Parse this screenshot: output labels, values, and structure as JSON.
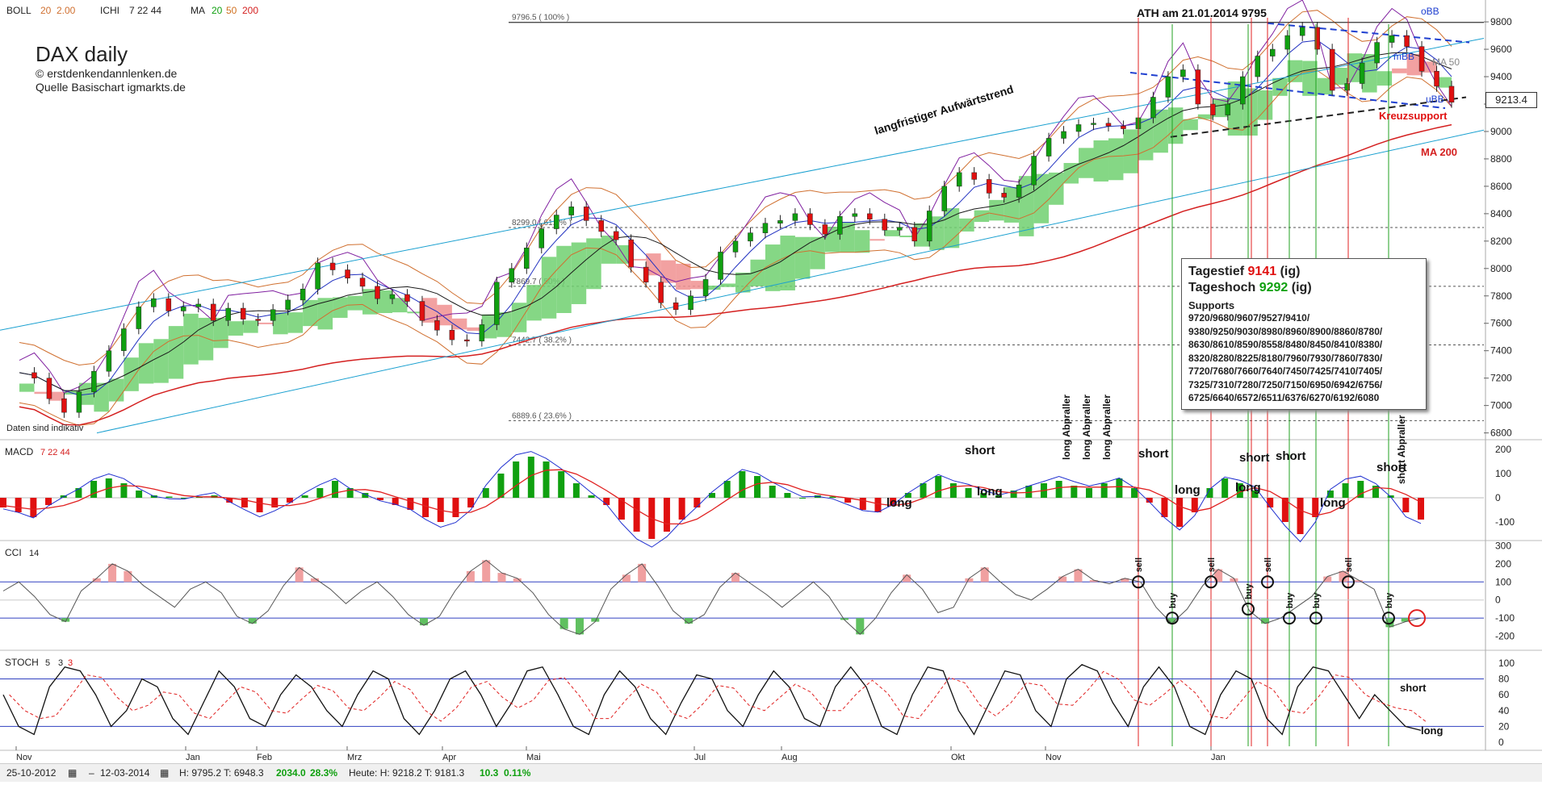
{
  "header": {
    "boll": "BOLL",
    "boll_p1": "20",
    "boll_p2": "2.00",
    "ichi": "ICHI",
    "ichi_p": "7  22  44",
    "ma": "MA",
    "ma_p1": "20",
    "ma_p2": "50",
    "ma_p3": "200"
  },
  "title": "DAX daily",
  "subtitle1": "© erstdenkendannlenken.de",
  "subtitle2": "Quelle Basischart igmarkts.de",
  "disclaimer": "Daten sind indikativ",
  "ath_label": "ATH am 21.01.2014 9795",
  "fib_labels": [
    "9796.5 ( 100% )",
    "8299.0 ( 61.8% )",
    "7869.7 ( 50% )",
    "7442.7 ( 38.2% )",
    "6889.6 ( 23.6% )"
  ],
  "annotations": {
    "trend": "langfristiger Aufwärtstrend",
    "kreuzsupport": "Kreuzsupport",
    "ma200": "MA 200",
    "obb": "oBB",
    "mbb": "mBB",
    "ma50": "MA 50",
    "ubb": "uBB"
  },
  "current_price": "9213.4",
  "info_box": {
    "tagestief_label": "Tagestief",
    "tagestief_value": "9141",
    "tagestief_src": "(ig)",
    "tageshoch_label": "Tageshoch",
    "tageshoch_value": "9292",
    "tageshoch_src": "(ig)",
    "supports_title": "Supports",
    "supports_lines": [
      "9720/9680/9607/9527/9410/",
      "9380/9250/9030/8980/8960/8900/8860/8780/",
      "8630/8610/8590/8558/8480/8450/8410/8380/",
      "8320/8280/8225/8180/7960/7930/7860/7830/",
      "7720/7680/7660/7640/7450/7425/7410/7405/",
      "7325/7310/7280/7250/7150/6950/6942/6756/",
      "6725/6640/6572/6511/6376/6270/6192/6080"
    ]
  },
  "panels": {
    "macd": "MACD",
    "macd_p": "7  22  44",
    "cci": "CCI",
    "cci_p": "14",
    "stoch": "STOCH",
    "stoch_p1": "5",
    "stoch_p2": "3",
    "stoch_p3": "3"
  },
  "signals": {
    "long_abpraller": "long Abpraller",
    "short_abpraller": "short Abpraller",
    "short": "short",
    "long": "long",
    "sell": "sell",
    "buy": "buy"
  },
  "footer": {
    "date_from": "25-10-2012",
    "date_to": "12-03-2014",
    "stats1": "H: 9795.2  T: 6948.3",
    "stats_change": "2034.0",
    "stats_pct": "28.3%",
    "today": "Heute: H: 9218.2  T: 9181.3",
    "today_change": "10.3",
    "today_pct": "0.11%"
  },
  "colors": {
    "up": "#10a010",
    "down": "#e01010",
    "ma20": "#d07020",
    "ma50": "#1a1a1a",
    "ma200": "#d42020",
    "channel": "#1aa0d0",
    "boll": "#d07030",
    "ichi": "#8020a0",
    "macd": "#2030d0",
    "signal": "#e02020"
  },
  "chart_data": [
    {
      "type": "line",
      "title": "DAX daily",
      "y_axis_ticks": [
        9800,
        9600,
        9400,
        9200,
        9000,
        8800,
        8600,
        8400,
        8200,
        8000,
        7800,
        7600,
        7400,
        7200,
        7000,
        6800
      ],
      "x_tick_labels": [
        "Nov",
        "Jan",
        "Feb",
        "Mrz",
        "Apr",
        "Mai",
        "Jul",
        "Aug",
        "Okt",
        "Nov",
        "Jan"
      ],
      "ylim": [
        6780,
        9830
      ],
      "close_approx": [
        7240,
        7200,
        7050,
        6950,
        7100,
        7250,
        7400,
        7560,
        7720,
        7780,
        7690,
        7720,
        7740,
        7620,
        7710,
        7630,
        7620,
        7700,
        7770,
        7850,
        8040,
        7990,
        7930,
        7870,
        7780,
        7810,
        7760,
        7620,
        7550,
        7480,
        7470,
        7590,
        7900,
        8000,
        8150,
        8290,
        8390,
        8450,
        8350,
        8270,
        8210,
        8010,
        7900,
        7750,
        7700,
        7800,
        7920,
        8120,
        8200,
        8260,
        8330,
        8350,
        8400,
        8320,
        8250,
        8380,
        8400,
        8360,
        8280,
        8300,
        8200,
        8420,
        8600,
        8700,
        8650,
        8550,
        8520,
        8610,
        8820,
        8950,
        9000,
        9050,
        9060,
        9040,
        9020,
        9100,
        9250,
        9400,
        9450,
        9200,
        9120,
        9200,
        9400,
        9550,
        9600,
        9700,
        9760,
        9600,
        9300,
        9350,
        9500,
        9650,
        9700,
        9620,
        9440,
        9330,
        9213
      ],
      "fib_levels": [
        {
          "label": "100%",
          "value": 9796.5
        },
        {
          "label": "61.8%",
          "value": 8299.0
        },
        {
          "label": "50%",
          "value": 7869.7
        },
        {
          "label": "38.2%",
          "value": 7442.7
        },
        {
          "label": "23.6%",
          "value": 6889.6
        }
      ],
      "last": 9213.4
    },
    {
      "type": "bar",
      "title": "MACD 7 22 44",
      "y_axis_ticks": [
        200,
        100,
        0,
        -100
      ],
      "histogram_approx": [
        -40,
        -60,
        -80,
        -30,
        10,
        40,
        70,
        80,
        60,
        30,
        10,
        5,
        0,
        5,
        10,
        -20,
        -40,
        -60,
        -40,
        -20,
        10,
        40,
        70,
        40,
        20,
        -10,
        -30,
        -50,
        -80,
        -100,
        -80,
        -40,
        40,
        100,
        150,
        170,
        150,
        110,
        60,
        10,
        -30,
        -90,
        -140,
        -170,
        -140,
        -90,
        -40,
        20,
        70,
        110,
        90,
        50,
        20,
        0,
        10,
        5,
        -20,
        -50,
        -60,
        -30,
        20,
        60,
        90,
        60,
        40,
        20,
        10,
        30,
        50,
        60,
        70,
        50,
        40,
        60,
        80,
        40,
        -20,
        -80,
        -120,
        -60,
        40,
        80,
        60,
        30,
        -40,
        -100,
        -150,
        -80,
        30,
        60,
        70,
        50,
        10,
        -60,
        -90
      ]
    },
    {
      "type": "line",
      "title": "CCI 14",
      "y_axis_ticks": [
        300,
        200,
        100,
        0,
        -100,
        -200
      ],
      "series": [
        {
          "name": "CCI",
          "values": [
            50,
            100,
            20,
            -80,
            -120,
            50,
            120,
            200,
            160,
            80,
            20,
            -40,
            60,
            100,
            40,
            -90,
            -130,
            -60,
            80,
            180,
            120,
            60,
            -20,
            50,
            100,
            20,
            -80,
            -140,
            -90,
            50,
            160,
            220,
            150,
            120,
            40,
            -80,
            -160,
            -190,
            -120,
            60,
            140,
            200,
            80,
            -60,
            -130,
            -80,
            70,
            150,
            90,
            30,
            -40,
            30,
            100,
            20,
            -110,
            -190,
            -100,
            40,
            140,
            60,
            -70,
            -40,
            120,
            180,
            100,
            30,
            0,
            60,
            130,
            170,
            110,
            90,
            120,
            100,
            -40,
            -130,
            -50,
            80,
            170,
            120,
            -60,
            -130,
            -100,
            -40,
            20,
            130,
            160,
            110,
            60,
            -150,
            -120,
            -100
          ]
        }
      ]
    },
    {
      "type": "line",
      "title": "STOCH 5 3 3",
      "y_axis_ticks": [
        100,
        80,
        60,
        40,
        20,
        0
      ],
      "series": [
        {
          "name": "STOCH",
          "values": [
            60,
            20,
            10,
            70,
            95,
            90,
            60,
            20,
            40,
            80,
            70,
            30,
            10,
            50,
            90,
            70,
            30,
            20,
            60,
            85,
            70,
            40,
            20,
            60,
            90,
            80,
            30,
            10,
            40,
            80,
            90,
            60,
            20,
            50,
            90,
            95,
            60,
            20,
            10,
            60,
            90,
            70,
            30,
            10,
            50,
            85,
            80,
            40,
            20,
            60,
            90,
            70,
            30,
            20,
            70,
            95,
            70,
            20,
            10,
            60,
            95,
            90,
            40,
            10,
            50,
            90,
            85,
            40,
            20,
            80,
            98,
            90,
            50,
            20,
            70,
            95,
            70,
            20,
            10,
            60,
            90,
            80,
            30,
            10,
            70,
            95,
            90,
            60,
            30,
            60,
            40,
            20,
            15
          ]
        }
      ]
    }
  ]
}
